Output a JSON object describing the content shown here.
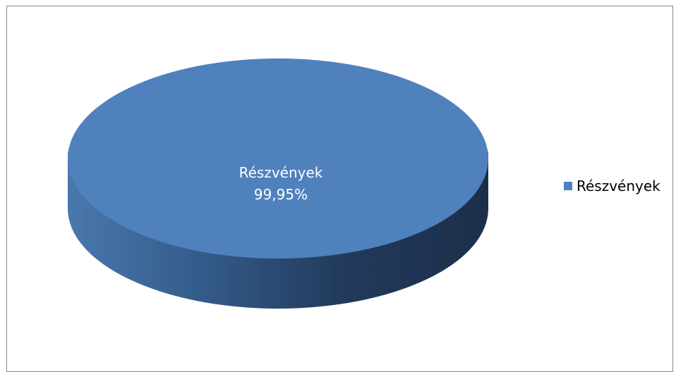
{
  "chart_data": {
    "type": "pie",
    "title": "",
    "categories": [
      "Részvények"
    ],
    "values": [
      99.95
    ],
    "data_labels": [
      {
        "name": "Részvények",
        "value": "99,95%"
      }
    ],
    "legend": {
      "position": "right",
      "items": [
        "Részvények"
      ]
    },
    "colors": {
      "slice_top": "#4f81bd",
      "slice_side_light": "#3e6a9e",
      "slice_side_dark": "#1f3350",
      "frame_border": "#8a8a8a"
    },
    "style": "3d"
  }
}
